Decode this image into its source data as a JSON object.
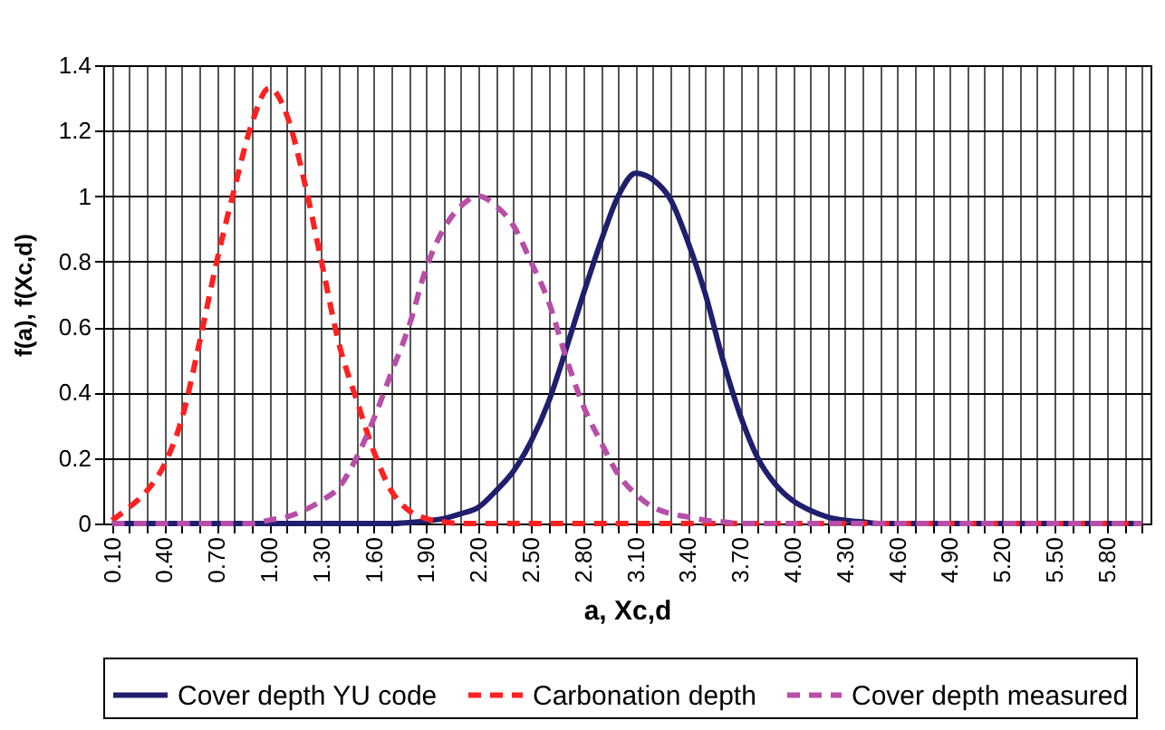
{
  "chart_data": {
    "type": "line",
    "xlabel": "a, Xc,d",
    "ylabel": "f(a), f(Xc,d)",
    "x": [
      0.1,
      0.2,
      0.3,
      0.4,
      0.5,
      0.6,
      0.7,
      0.8,
      0.9,
      1.0,
      1.1,
      1.2,
      1.3,
      1.4,
      1.5,
      1.6,
      1.7,
      1.8,
      1.9,
      2.0,
      2.1,
      2.2,
      2.3,
      2.4,
      2.5,
      2.6,
      2.7,
      2.8,
      2.9,
      3.0,
      3.1,
      3.2,
      3.3,
      3.4,
      3.5,
      3.6,
      3.7,
      3.8,
      3.9,
      4.0,
      4.1,
      4.2,
      4.3,
      4.4,
      4.5,
      4.6,
      4.7,
      4.8,
      4.9,
      5.0,
      5.1,
      5.2,
      5.3,
      5.4,
      5.5,
      5.6,
      5.7,
      5.8,
      5.9,
      6.0
    ],
    "series": [
      {
        "name": "Cover depth YU code",
        "color": "#1f1f6e",
        "line_style": "solid",
        "values": [
          0,
          0,
          0,
          0,
          0,
          0,
          0,
          0,
          0,
          0,
          0,
          0,
          0,
          0,
          0,
          0,
          0,
          0.003,
          0.008,
          0.015,
          0.03,
          0.05,
          0.1,
          0.16,
          0.25,
          0.37,
          0.53,
          0.7,
          0.86,
          1.0,
          1.07,
          1.05,
          0.99,
          0.86,
          0.7,
          0.5,
          0.33,
          0.2,
          0.12,
          0.07,
          0.04,
          0.02,
          0.01,
          0.005,
          0,
          0,
          0,
          0,
          0,
          0,
          0,
          0,
          0,
          0,
          0,
          0,
          0,
          0,
          0,
          0
        ]
      },
      {
        "name": "Carbonation depth",
        "color": "#ff2020",
        "line_style": "dashed",
        "values": [
          0.01,
          0.05,
          0.1,
          0.18,
          0.32,
          0.55,
          0.8,
          1.02,
          1.22,
          1.33,
          1.25,
          1.05,
          0.8,
          0.55,
          0.38,
          0.22,
          0.1,
          0.04,
          0.015,
          0.005,
          0,
          0,
          0,
          0,
          0,
          0,
          0,
          0,
          0,
          0,
          0,
          0,
          0,
          0,
          0,
          0,
          0,
          0,
          0,
          0,
          0,
          0,
          0,
          0,
          0,
          0,
          0,
          0,
          0,
          0,
          0,
          0,
          0,
          0,
          0,
          0,
          0,
          0,
          0,
          0
        ]
      },
      {
        "name": "Cover depth measured",
        "color": "#b84ea8",
        "line_style": "dashed",
        "values": [
          0,
          0,
          0,
          0,
          0,
          0,
          0,
          0,
          0,
          0.01,
          0.02,
          0.04,
          0.07,
          0.11,
          0.2,
          0.32,
          0.46,
          0.6,
          0.78,
          0.9,
          0.97,
          1.0,
          0.97,
          0.91,
          0.8,
          0.68,
          0.51,
          0.36,
          0.25,
          0.15,
          0.09,
          0.05,
          0.03,
          0.02,
          0.01,
          0.005,
          0,
          0,
          0,
          0,
          0,
          0,
          0,
          0,
          0,
          0,
          0,
          0,
          0,
          0,
          0,
          0,
          0,
          0,
          0,
          0,
          0,
          0,
          0,
          0
        ]
      }
    ],
    "xlim": [
      0.05,
      6.05
    ],
    "xticks": [
      {
        "value": 0.1,
        "label": "0.10"
      },
      {
        "value": 0.2,
        "label": null
      },
      {
        "value": 0.3,
        "label": null
      },
      {
        "value": 0.4,
        "label": "0.40"
      },
      {
        "value": 0.5,
        "label": null
      },
      {
        "value": 0.6,
        "label": null
      },
      {
        "value": 0.7,
        "label": "0.70"
      },
      {
        "value": 0.8,
        "label": null
      },
      {
        "value": 0.9,
        "label": null
      },
      {
        "value": 1.0,
        "label": "1.00"
      },
      {
        "value": 1.1,
        "label": null
      },
      {
        "value": 1.2,
        "label": null
      },
      {
        "value": 1.3,
        "label": "1.30"
      },
      {
        "value": 1.4,
        "label": null
      },
      {
        "value": 1.5,
        "label": null
      },
      {
        "value": 1.6,
        "label": "1.60"
      },
      {
        "value": 1.7,
        "label": null
      },
      {
        "value": 1.8,
        "label": null
      },
      {
        "value": 1.9,
        "label": "1.90"
      },
      {
        "value": 2.0,
        "label": null
      },
      {
        "value": 2.1,
        "label": null
      },
      {
        "value": 2.2,
        "label": "2.20"
      },
      {
        "value": 2.3,
        "label": null
      },
      {
        "value": 2.4,
        "label": null
      },
      {
        "value": 2.5,
        "label": "2.50"
      },
      {
        "value": 2.6,
        "label": null
      },
      {
        "value": 2.7,
        "label": null
      },
      {
        "value": 2.8,
        "label": "2.80"
      },
      {
        "value": 2.9,
        "label": null
      },
      {
        "value": 3.0,
        "label": null
      },
      {
        "value": 3.1,
        "label": "3.10"
      },
      {
        "value": 3.2,
        "label": null
      },
      {
        "value": 3.3,
        "label": null
      },
      {
        "value": 3.4,
        "label": "3.40"
      },
      {
        "value": 3.5,
        "label": null
      },
      {
        "value": 3.6,
        "label": null
      },
      {
        "value": 3.7,
        "label": "3.70"
      },
      {
        "value": 3.8,
        "label": null
      },
      {
        "value": 3.9,
        "label": null
      },
      {
        "value": 4.0,
        "label": "4.00"
      },
      {
        "value": 4.1,
        "label": null
      },
      {
        "value": 4.2,
        "label": null
      },
      {
        "value": 4.3,
        "label": "4.30"
      },
      {
        "value": 4.4,
        "label": null
      },
      {
        "value": 4.5,
        "label": null
      },
      {
        "value": 4.6,
        "label": "4.60"
      },
      {
        "value": 4.7,
        "label": null
      },
      {
        "value": 4.8,
        "label": null
      },
      {
        "value": 4.9,
        "label": "4.90"
      },
      {
        "value": 5.0,
        "label": null
      },
      {
        "value": 5.1,
        "label": null
      },
      {
        "value": 5.2,
        "label": "5.20"
      },
      {
        "value": 5.3,
        "label": null
      },
      {
        "value": 5.4,
        "label": null
      },
      {
        "value": 5.5,
        "label": "5.50"
      },
      {
        "value": 5.6,
        "label": null
      },
      {
        "value": 5.7,
        "label": null
      },
      {
        "value": 5.8,
        "label": "5.80"
      },
      {
        "value": 5.9,
        "label": null
      },
      {
        "value": 6.0,
        "label": null
      }
    ],
    "ylim": [
      0,
      1.4
    ],
    "yticks": [
      0,
      0.2,
      0.4,
      0.6,
      0.8,
      1,
      1.2,
      1.4
    ],
    "grid": true,
    "legend": "bottom"
  }
}
